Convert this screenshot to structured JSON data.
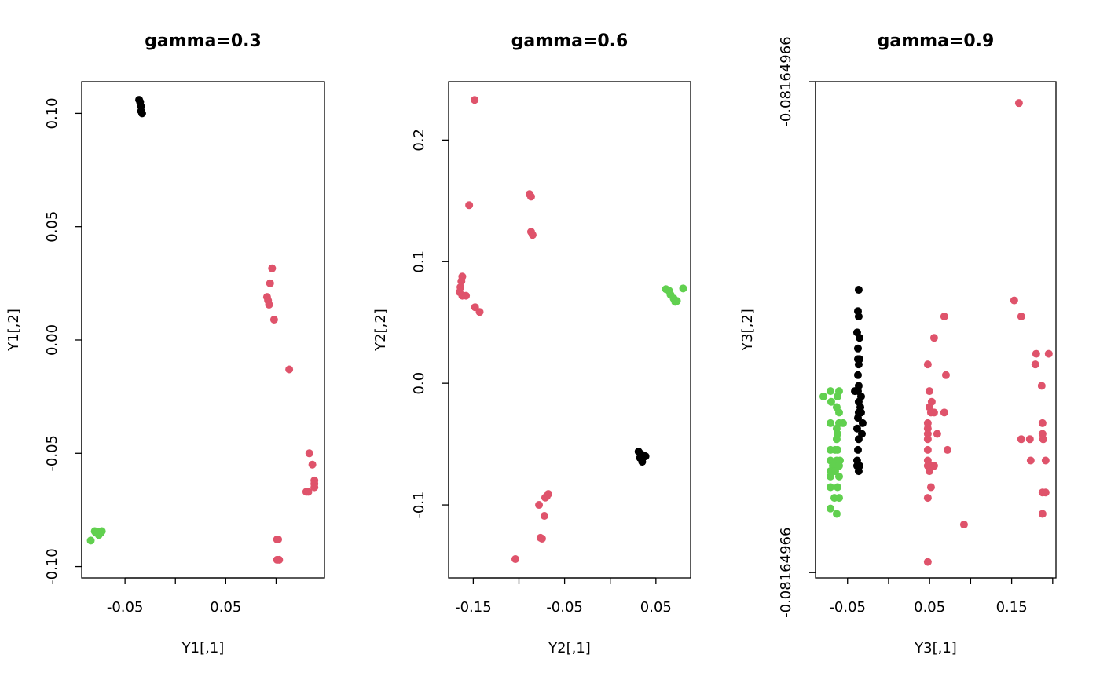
{
  "chart_data": [
    {
      "type": "scatter",
      "title": "gamma=0.3",
      "xlabel": "Y1[,1]",
      "ylabel": "Y1[,2]",
      "xlim": [
        -0.093,
        0.148
      ],
      "ylim": [
        -0.105,
        0.114
      ],
      "xticks": [
        {
          "value": -0.05,
          "label": "-0.05"
        },
        {
          "value": 0,
          "label": null
        },
        {
          "value": 0.05,
          "label": "0.05"
        },
        {
          "value": 0.1,
          "label": null
        }
      ],
      "yticks": [
        {
          "value": -0.1,
          "label": "-0.10"
        },
        -0.05,
        {
          "value": 0,
          "label": "0.00"
        },
        0.05,
        {
          "value": 0.1,
          "label": "0.10"
        }
      ],
      "series": [
        {
          "color": "#000000",
          "x": [
            -0.036,
            -0.035,
            -0.034,
            -0.034,
            -0.033
          ],
          "values": [
            0.106,
            0.105,
            0.103,
            0.101,
            0.1
          ]
        },
        {
          "color": "#DF536B",
          "x": [
            0.096,
            0.094,
            0.091,
            0.092,
            0.093,
            0.098,
            0.113,
            0.133,
            0.136,
            0.138,
            0.138,
            0.138,
            0.13,
            0.132,
            0.101,
            0.102,
            0.101,
            0.103
          ],
          "values": [
            0.0316,
            0.025,
            0.019,
            0.0174,
            0.0156,
            0.009,
            -0.013,
            -0.05,
            -0.055,
            -0.062,
            -0.0635,
            -0.065,
            -0.067,
            -0.067,
            -0.088,
            -0.088,
            -0.097,
            -0.097
          ]
        },
        {
          "color": "#61D04F",
          "x": [
            -0.084,
            -0.08,
            -0.077,
            -0.074,
            -0.076,
            -0.073,
            -0.079
          ],
          "values": [
            -0.0885,
            -0.0844,
            -0.0847,
            -0.085,
            -0.086,
            -0.0844,
            -0.085
          ]
        }
      ]
    },
    {
      "type": "scatter",
      "title": "gamma=0.6",
      "xlabel": "Y2[,1]",
      "ylabel": "Y2[,2]",
      "xlim": [
        -0.177,
        0.088
      ],
      "ylim": [
        -0.16,
        0.248
      ],
      "xticks": [
        {
          "value": -0.15,
          "label": "-0.15"
        },
        {
          "value": -0.1,
          "label": null
        },
        {
          "value": -0.05,
          "label": "-0.05"
        },
        {
          "value": 0,
          "label": null
        },
        {
          "value": 0.05,
          "label": "0.05"
        }
      ],
      "yticks": [
        -0.1,
        {
          "value": 0,
          "label": "0.0"
        },
        0.1,
        0.2
      ],
      "series": [
        {
          "color": "#DF536B",
          "x": [
            -0.1485,
            -0.1545,
            -0.0884,
            -0.0867,
            -0.0867,
            -0.085,
            -0.162,
            -0.163,
            -0.164,
            -0.165,
            -0.162,
            -0.158,
            -0.148,
            -0.143,
            -0.0678,
            -0.0695,
            -0.0712,
            -0.078,
            -0.0721,
            -0.0747,
            -0.0764,
            -0.1039
          ],
          "values": [
            0.233,
            0.1465,
            0.1555,
            0.1535,
            0.1245,
            0.122,
            0.0877,
            0.0839,
            0.079,
            0.075,
            0.072,
            0.072,
            0.0626,
            0.0587,
            -0.091,
            -0.093,
            -0.094,
            -0.1,
            -0.109,
            -0.1277,
            -0.127,
            -0.1445
          ]
        },
        {
          "color": "#000000",
          "x": [
            0.031,
            0.0335,
            0.037,
            0.035,
            0.0326,
            0.0386
          ],
          "values": [
            -0.0561,
            -0.058,
            -0.0594,
            -0.0645,
            -0.0613,
            -0.06
          ]
        },
        {
          "color": "#61D04F",
          "x": [
            0.061,
            0.0644,
            0.066,
            0.0695,
            0.073,
            0.0712,
            0.0798
          ],
          "values": [
            0.0774,
            0.0761,
            0.0729,
            0.0697,
            0.0677,
            0.067,
            0.078
          ]
        }
      ]
    },
    {
      "type": "scatter",
      "title": "gamma=0.9",
      "xlabel": "Y3[,1]",
      "ylabel": "Y3[,2]",
      "xlim": [
        -0.089,
        0.204
      ],
      "ylim": [
        -0.08164965809277389,
        -0.0816496580927726
      ],
      "xticks": [
        {
          "value": -0.05,
          "label": "-0.05"
        },
        {
          "value": 0,
          "label": null
        },
        {
          "value": 0.05,
          "label": "0.05"
        },
        {
          "value": 0.1,
          "label": null
        },
        {
          "value": 0.15,
          "label": "0.15"
        },
        {
          "value": 0.2,
          "label": null
        }
      ],
      "yticks": [
        {
          "value": -0.08164965809277387,
          "label": "-0.08164966"
        },
        {
          "value": -0.0816496580927726,
          "label": "-0.08164966"
        }
      ],
      "series": [
        {
          "color": "#DF536B",
          "x": [
            0.1589,
            0.1531,
            0.1617,
            0.0679,
            0.0555,
            0.1799,
            0.1952,
            0.0478,
            0.1789,
            0.0699,
            0.1866,
            0.0498,
            0.0526,
            0.0498,
            0.0555,
            0.0517,
            0.0679,
            0.0478,
            0.1876,
            0.0478,
            0.0593,
            0.0478,
            0.1876,
            0.0478,
            0.1617,
            0.1722,
            0.1885,
            0.0478,
            0.0718,
            0.1732,
            0.1914,
            0.0478,
            0.0517,
            0.0555,
            0.0478,
            0.0498,
            0.0517,
            0.1876,
            0.1914,
            0.0478,
            0.1876,
            0.0919,
            0.0478
          ],
          "values": [
            -0.08164965809277265,
            -0.08164965809277316,
            -0.0816496580927732,
            -0.0816496580927732,
            -0.08164965809277326,
            -0.0816496580927733,
            -0.0816496580927733,
            -0.08164965809277333,
            -0.08164965809277333,
            -0.08164965809277336,
            -0.08164965809277339,
            -0.0816496580927734,
            -0.08164965809277343,
            -0.08164965809277344,
            -0.08164965809277346,
            -0.08164965809277346,
            -0.08164965809277346,
            -0.08164965809277348,
            -0.08164965809277348,
            -0.0816496580927735,
            -0.08164965809277351,
            -0.08164965809277351,
            -0.08164965809277351,
            -0.08164965809277352,
            -0.08164965809277352,
            -0.08164965809277352,
            -0.08164965809277352,
            -0.08164965809277355,
            -0.08164965809277355,
            -0.08164965809277358,
            -0.08164965809277358,
            -0.08164965809277358,
            -0.0816496580927736,
            -0.0816496580927736,
            -0.0816496580927736,
            -0.08164965809277361,
            -0.08164965809277365,
            -0.08164965809277366,
            -0.08164965809277366,
            -0.08164965809277368,
            -0.08164965809277372,
            -0.08164965809277375,
            -0.08164965809277384
          ]
        },
        {
          "color": "#000000",
          "x": [
            -0.0364,
            -0.0373,
            -0.0364,
            -0.0383,
            -0.0354,
            -0.0373,
            -0.0373,
            -0.0354,
            -0.0364,
            -0.0373,
            -0.0364,
            -0.0373,
            -0.0411,
            -0.0335,
            -0.0364,
            -0.0344,
            -0.0364,
            -0.0335,
            -0.0373,
            -0.0316,
            -0.0383,
            -0.0325,
            -0.0364,
            -0.0373,
            -0.0383,
            -0.0354,
            -0.0364,
            -0.0383
          ],
          "values": [
            -0.08164965809277314,
            -0.08164965809277319,
            -0.0816496580927732,
            -0.08164965809277325,
            -0.08164965809277326,
            -0.08164965809277329,
            -0.08164965809277332,
            -0.08164965809277332,
            -0.08164965809277333,
            -0.08164965809277336,
            -0.08164965809277339,
            -0.0816496580927734,
            -0.0816496580927734,
            -0.08164965809277341,
            -0.08164965809277343,
            -0.08164965809277344,
            -0.08164965809277346,
            -0.08164965809277346,
            -0.08164965809277347,
            -0.08164965809277348,
            -0.0816496580927735,
            -0.08164965809277351,
            -0.08164965809277352,
            -0.08164965809277355,
            -0.08164965809277358,
            -0.0816496580927736,
            -0.08164965809277361,
            -0.0816496580927736
          ]
        },
        {
          "color": "#61D04F",
          "x": [
            -0.0794,
            -0.0708,
            -0.0603,
            -0.0622,
            -0.0699,
            -0.0632,
            -0.0603,
            -0.0555,
            -0.0708,
            -0.0603,
            -0.0632,
            -0.0622,
            -0.0632,
            -0.0708,
            -0.0622,
            -0.0651,
            -0.0708,
            -0.0632,
            -0.0593,
            -0.0679,
            -0.0603,
            -0.0708,
            -0.0651,
            -0.0603,
            -0.0708,
            -0.0622,
            -0.0708,
            -0.066,
            -0.0603,
            -0.0708,
            -0.0632
          ],
          "values": [
            -0.08164965809277341,
            -0.0816496580927734,
            -0.0816496580927734,
            -0.08164965809277341,
            -0.08164965809277343,
            -0.08164965809277344,
            -0.08164965809277346,
            -0.08164965809277348,
            -0.08164965809277348,
            -0.08164965809277348,
            -0.0816496580927735,
            -0.08164965809277351,
            -0.08164965809277352,
            -0.08164965809277355,
            -0.08164965809277355,
            -0.08164965809277355,
            -0.08164965809277358,
            -0.08164965809277358,
            -0.08164965809277358,
            -0.0816496580927736,
            -0.0816496580927736,
            -0.08164965809277361,
            -0.08164965809277361,
            -0.08164965809277362,
            -0.08164965809277362,
            -0.08164965809277365,
            -0.08164965809277365,
            -0.08164965809277368,
            -0.08164965809277368,
            -0.0816496580927737,
            -0.08164965809277372
          ]
        }
      ]
    }
  ]
}
